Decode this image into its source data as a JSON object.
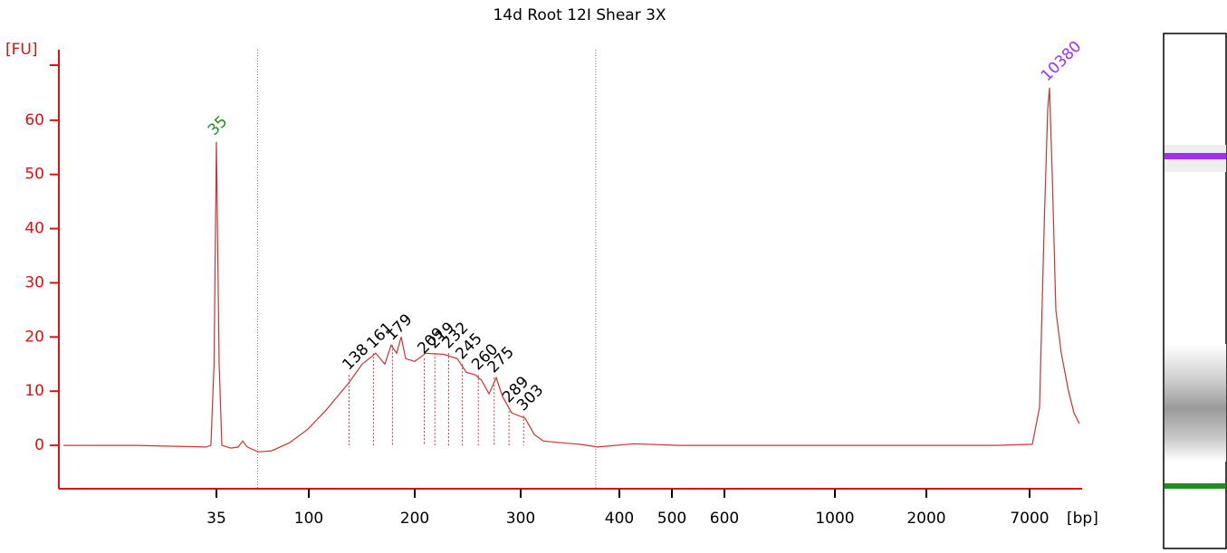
{
  "chart_data": {
    "type": "line",
    "title": "14d Root 12I Shear 3X",
    "y_label": "[FU]",
    "x_label": "[bp]",
    "color": "#cc3333",
    "axis_color": "#dd1111",
    "x": [
      15.6,
      24.8,
      33.7,
      34.3,
      34.7,
      35,
      36.9,
      38.8,
      45.2,
      50.3,
      53.5,
      56.7,
      64.3,
      73.9,
      86.6,
      99.4,
      116.2,
      137.6,
      150.4,
      163.2,
      171.8,
      177.8,
      182.9,
      187.2,
      191.5,
      200,
      210.3,
      227.4,
      240.2,
      248.7,
      257.3,
      263.2,
      270.1,
      276.9,
      282.9,
      291.5,
      304.6,
      313.8,
      322.9,
      359.6,
      378,
      427.6,
      513.8,
      763.9,
      1772,
      5377,
      7460,
      8688,
      9455,
      10069,
      10380,
      10836,
      11450,
      12371,
      13598,
      14519,
      15440
    ],
    "values": [
      0,
      0,
      -0.3,
      0,
      15,
      56,
      15,
      0,
      -0.5,
      -0.3,
      0.8,
      -0.3,
      -1.2,
      -1,
      0.5,
      3,
      6.5,
      11.5,
      15,
      17,
      15,
      18.5,
      17,
      20,
      16,
      15.5,
      17,
      16.8,
      16,
      13.5,
      13,
      12,
      9.5,
      12.5,
      9,
      6,
      5,
      2,
      0.8,
      0.2,
      -0.3,
      0.3,
      0,
      0,
      0,
      0,
      0.2,
      7,
      40,
      62,
      66,
      50,
      25,
      17,
      10,
      6,
      4
    ],
    "xlim": [
      15,
      15900
    ],
    "xticks": [
      35,
      100,
      200,
      300,
      400,
      500,
      600,
      1000,
      2000,
      7000
    ],
    "ylim": [
      -8,
      73
    ],
    "yticks": [
      0,
      10,
      20,
      30,
      40,
      50,
      60
    ],
    "smear_region": [
      64,
      376
    ],
    "peaks": {
      "bp": [
        138,
        161,
        179,
        209,
        219,
        232,
        245,
        260,
        275,
        289,
        303
      ],
      "fu": [
        13,
        17,
        18.5,
        16,
        17,
        17,
        15,
        13,
        12.5,
        7,
        5.5
      ],
      "color": "#000000"
    },
    "markers": {
      "bp": [
        35,
        10380
      ],
      "fu": [
        56,
        66
      ],
      "colors": [
        "#228b22",
        "#9b30ff"
      ]
    }
  }
}
